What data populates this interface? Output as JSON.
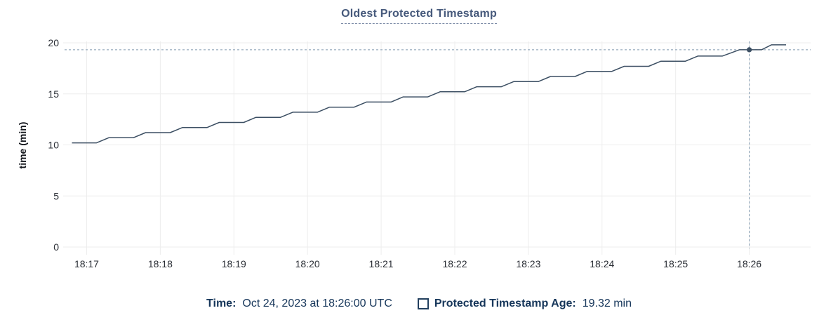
{
  "header": {
    "title": "Oldest Protected Timestamp"
  },
  "footer": {
    "time_label": "Time:",
    "time_value": "Oct 24, 2023 at 18:26:00 UTC",
    "series_label": "Protected Timestamp Age:",
    "series_value": "19.32 min"
  },
  "chart_data": {
    "type": "line",
    "title": "Oldest Protected Timestamp",
    "xlabel": "",
    "ylabel": "time (min)",
    "ylim": [
      0,
      20
    ],
    "y_ticks": [
      0,
      5,
      10,
      15,
      20
    ],
    "x_ticks": [
      "18:17",
      "18:18",
      "18:19",
      "18:20",
      "18:21",
      "18:22",
      "18:23",
      "18:24",
      "18:25",
      "18:26"
    ],
    "x_domain": [
      "18:16:42",
      "18:26:50"
    ],
    "grid": true,
    "legend_position": "bottom",
    "series": [
      {
        "name": "Protected Timestamp Age",
        "unit": "min",
        "points": [
          {
            "time": "18:16:48",
            "value": 10.2
          },
          {
            "time": "18:17:08",
            "value": 10.2
          },
          {
            "time": "18:17:18",
            "value": 10.7
          },
          {
            "time": "18:17:38",
            "value": 10.7
          },
          {
            "time": "18:17:48",
            "value": 11.2
          },
          {
            "time": "18:18:08",
            "value": 11.2
          },
          {
            "time": "18:18:18",
            "value": 11.7
          },
          {
            "time": "18:18:38",
            "value": 11.7
          },
          {
            "time": "18:18:48",
            "value": 12.2
          },
          {
            "time": "18:19:08",
            "value": 12.2
          },
          {
            "time": "18:19:18",
            "value": 12.7
          },
          {
            "time": "18:19:38",
            "value": 12.7
          },
          {
            "time": "18:19:48",
            "value": 13.2
          },
          {
            "time": "18:20:08",
            "value": 13.2
          },
          {
            "time": "18:20:18",
            "value": 13.7
          },
          {
            "time": "18:20:38",
            "value": 13.7
          },
          {
            "time": "18:20:48",
            "value": 14.2
          },
          {
            "time": "18:21:08",
            "value": 14.2
          },
          {
            "time": "18:21:18",
            "value": 14.7
          },
          {
            "time": "18:21:38",
            "value": 14.7
          },
          {
            "time": "18:21:48",
            "value": 15.2
          },
          {
            "time": "18:22:08",
            "value": 15.2
          },
          {
            "time": "18:22:18",
            "value": 15.7
          },
          {
            "time": "18:22:38",
            "value": 15.7
          },
          {
            "time": "18:22:48",
            "value": 16.2
          },
          {
            "time": "18:23:08",
            "value": 16.2
          },
          {
            "time": "18:23:18",
            "value": 16.7
          },
          {
            "time": "18:23:38",
            "value": 16.7
          },
          {
            "time": "18:23:48",
            "value": 17.2
          },
          {
            "time": "18:24:08",
            "value": 17.2
          },
          {
            "time": "18:24:18",
            "value": 17.7
          },
          {
            "time": "18:24:38",
            "value": 17.7
          },
          {
            "time": "18:24:48",
            "value": 18.2
          },
          {
            "time": "18:25:08",
            "value": 18.2
          },
          {
            "time": "18:25:18",
            "value": 18.7
          },
          {
            "time": "18:25:38",
            "value": 18.7
          },
          {
            "time": "18:25:52",
            "value": 19.32
          },
          {
            "time": "18:26:10",
            "value": 19.32
          },
          {
            "time": "18:26:18",
            "value": 19.8
          },
          {
            "time": "18:26:30",
            "value": 19.8
          }
        ]
      }
    ],
    "crosshair": {
      "time": "18:26:00",
      "value": 19.32,
      "time_label": "Oct 24, 2023 at 18:26:00 UTC",
      "value_label": "19.32 min"
    },
    "colors": {
      "line": "#3c4f63",
      "dot": "#3c4f63",
      "crosshair": "#97abbd",
      "grid": "#ededed",
      "tick_text": "#2a2e35",
      "title_text": "#46597b",
      "footer_text": "#16365a",
      "background": "#ffffff"
    }
  }
}
